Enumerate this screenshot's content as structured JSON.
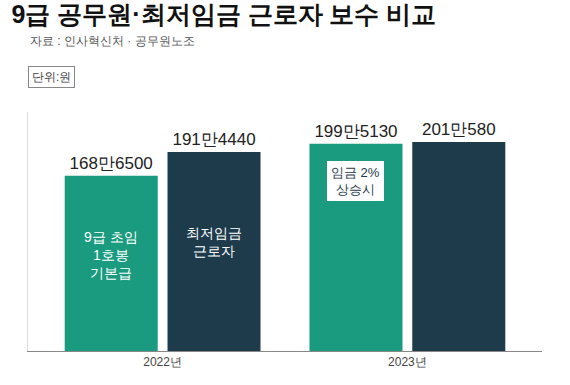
{
  "chart_data": {
    "type": "bar",
    "title": "9급 공무원·최저임금 근로자 보수 비교",
    "source": "자료 : 인사혁신처 · 공무원노조",
    "unit": "단위:원",
    "categories": [
      "2022년",
      "2023년"
    ],
    "series": [
      {
        "color": "#1a9a7e",
        "values": [
          1686500,
          1995130
        ],
        "value_labels": [
          "168만6500",
          "199만5130"
        ]
      },
      {
        "color": "#1e3b4c",
        "values": [
          1914440,
          2010580
        ],
        "value_labels": [
          "191만4440",
          "201만580"
        ]
      }
    ],
    "annotations": [
      {
        "text": "9급 초임\n1호봉\n기본급",
        "category": "2022년",
        "series": 0
      },
      {
        "text": "최저임금\n근로자",
        "category": "2022년",
        "series": 1
      },
      {
        "text": "임금 2%\n상승시",
        "category": "2023년",
        "series": 0
      }
    ],
    "ylim": [
      0,
      2300000
    ],
    "yticks": [],
    "grid": false,
    "data_labels": true,
    "tick_labels": "x"
  }
}
